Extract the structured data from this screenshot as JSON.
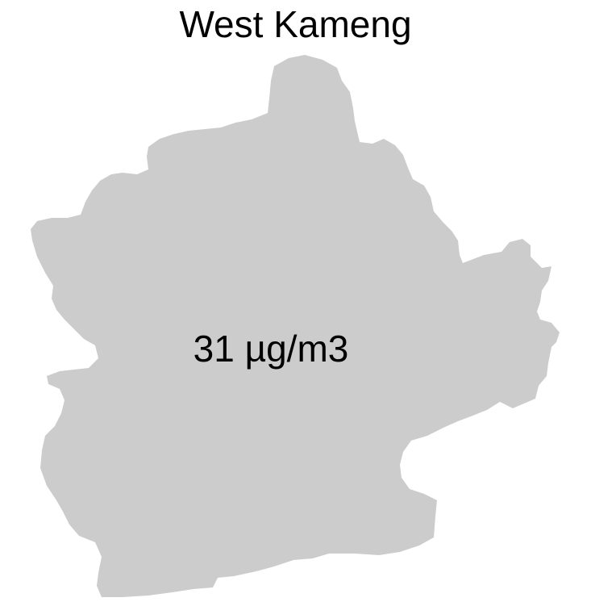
{
  "map": {
    "title": "West Kameng",
    "region_label": "31 µg/m3",
    "fill_color": "#cccccc"
  }
}
